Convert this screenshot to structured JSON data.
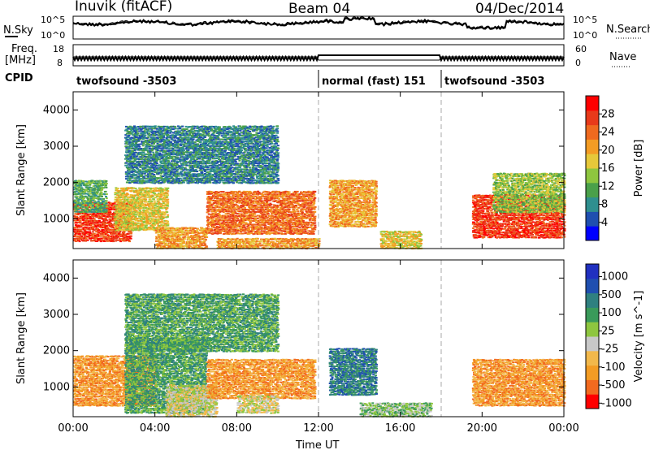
{
  "header": {
    "station": "Inuvik (fitACF)",
    "beam": "Beam 04",
    "date": "04/Dec/2014"
  },
  "panel_labels": {
    "nsky": "N.Sky",
    "freq_line1": "Freq.",
    "freq_line2": "[MHz]",
    "cpid": "CPID",
    "nsearch": "N.Search",
    "nave": "Nave",
    "nsky_hi": "10^5",
    "nsky_lo": "10^0",
    "nsearch_hi": "10^5",
    "nsearch_lo": "10^0",
    "freq_hi": "18",
    "freq_lo": "8",
    "nave_hi": "60",
    "nave_lo": "0"
  },
  "cpid_segments": [
    {
      "label": "twofsound -3503",
      "start_hour": 0
    },
    {
      "label": "normal (fast) 151",
      "start_hour": 12
    },
    {
      "label": "twofsound -3503",
      "start_hour": 18
    }
  ],
  "colors": {
    "power_scale": [
      "#0000ff",
      "#1f4fb0",
      "#2f8f8f",
      "#4aa04a",
      "#8ec63f",
      "#e6c83a",
      "#f39c24",
      "#ef6a1f",
      "#e83a1a",
      "#ff0000"
    ],
    "velocity_scale": [
      "#ff0000",
      "#f26a1f",
      "#f39c24",
      "#f2b84b",
      "#c8c8c8",
      "#8ec63f",
      "#3a9a5a",
      "#2f8080",
      "#1f4fb0",
      "#2030c0"
    ]
  },
  "chart_data": [
    {
      "type": "heatmap",
      "title": "Power",
      "ylabel": "Slant Range [km]",
      "xlabel": "Time UT",
      "x_ticks": [
        "00:00",
        "04:00",
        "08:00",
        "12:00",
        "16:00",
        "20:00",
        "00:00"
      ],
      "y_ticks": [
        "1000",
        "2000",
        "3000",
        "4000"
      ],
      "xlim_hours": [
        0,
        24
      ],
      "ylim_km": [
        180,
        4500
      ],
      "colorbar_label": "Power [dB]",
      "colorbar_ticks": [
        "4",
        "8",
        "12",
        "16",
        "20",
        "24",
        "28"
      ],
      "vertical_markers_hours": [
        12,
        18
      ],
      "blobs": [
        {
          "t0": 0.0,
          "t1": 2.8,
          "r0": 400,
          "r1": 1500,
          "level": 8
        },
        {
          "t0": 0.0,
          "t1": 1.6,
          "r0": 1200,
          "r1": 2100,
          "level": 3
        },
        {
          "t0": 2.0,
          "t1": 4.6,
          "r0": 700,
          "r1": 1900,
          "level": 5
        },
        {
          "t0": 4.0,
          "t1": 6.5,
          "r0": 200,
          "r1": 800,
          "level": 6
        },
        {
          "t0": 6.5,
          "t1": 11.8,
          "r0": 600,
          "r1": 1800,
          "level": 7
        },
        {
          "t0": 7.0,
          "t1": 12.0,
          "r0": 200,
          "r1": 500,
          "level": 6
        },
        {
          "t0": 12.5,
          "t1": 14.8,
          "r0": 800,
          "r1": 2100,
          "level": 6
        },
        {
          "t0": 15.0,
          "t1": 17.0,
          "r0": 200,
          "r1": 700,
          "level": 5
        },
        {
          "t0": 19.5,
          "t1": 24.0,
          "r0": 500,
          "r1": 1700,
          "level": 8
        },
        {
          "t0": 20.5,
          "t1": 24.0,
          "r0": 1200,
          "r1": 2300,
          "level": 4
        },
        {
          "t0": 2.5,
          "t1": 10.0,
          "r0": 2000,
          "r1": 3600,
          "level": 2
        }
      ]
    },
    {
      "type": "heatmap",
      "title": "Velocity",
      "ylabel": "Slant Range [km]",
      "xlabel": "Time UT",
      "x_ticks": [
        "00:00",
        "04:00",
        "08:00",
        "12:00",
        "16:00",
        "20:00",
        "00:00"
      ],
      "y_ticks": [
        "1000",
        "2000",
        "3000",
        "4000"
      ],
      "xlim_hours": [
        0,
        24
      ],
      "ylim_km": [
        180,
        4500
      ],
      "colorbar_label": "Velocity [m s^-1]",
      "colorbar_ticks": [
        "1000",
        "500",
        "100",
        "25",
        "-25",
        "-100",
        "-500",
        "-1000"
      ],
      "vertical_markers_hours": [
        12,
        18
      ],
      "blobs": [
        {
          "t0": 0.0,
          "t1": 4.0,
          "r0": 500,
          "r1": 1900,
          "level": 2
        },
        {
          "t0": 2.5,
          "t1": 6.5,
          "r0": 300,
          "r1": 2400,
          "level": 6
        },
        {
          "t0": 4.5,
          "t1": 7.0,
          "r0": 200,
          "r1": 1100,
          "level": 4
        },
        {
          "t0": 6.5,
          "t1": 11.8,
          "r0": 700,
          "r1": 1800,
          "level": 2
        },
        {
          "t0": 8.0,
          "t1": 10.0,
          "r0": 300,
          "r1": 800,
          "level": 4
        },
        {
          "t0": 12.5,
          "t1": 14.8,
          "r0": 800,
          "r1": 2100,
          "level": 7
        },
        {
          "t0": 14.0,
          "t1": 17.5,
          "r0": 200,
          "r1": 600,
          "level": 5
        },
        {
          "t0": 19.5,
          "t1": 24.0,
          "r0": 500,
          "r1": 1800,
          "level": 2
        },
        {
          "t0": 2.5,
          "t1": 10.0,
          "r0": 2000,
          "r1": 3600,
          "level": 6
        }
      ]
    }
  ]
}
